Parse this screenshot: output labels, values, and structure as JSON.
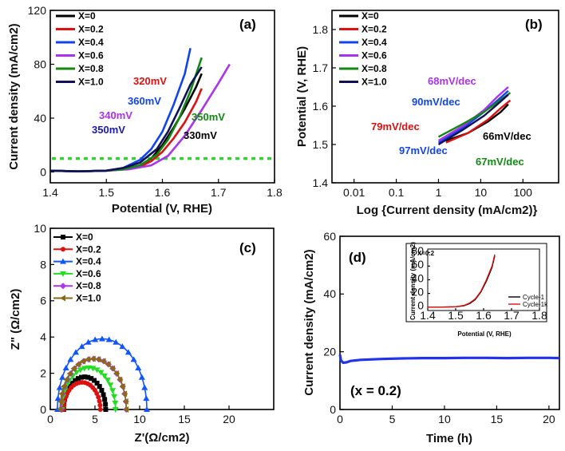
{
  "chart_data": [
    {
      "panel": "(a)",
      "type": "line",
      "xlabel": "Potential (V, RHE)",
      "ylabel": "Current density (mA/cm2)",
      "xlim": [
        1.4,
        1.8
      ],
      "ylim": [
        -8,
        120
      ],
      "xticks": [
        1.4,
        1.5,
        1.6,
        1.7,
        1.8
      ],
      "yticks": [
        0,
        40,
        80,
        120
      ],
      "xtick_labels": [
        "1.4",
        "1.5",
        "1.6",
        "1.7",
        "1.8"
      ],
      "ytick_labels": [
        "0",
        "40",
        "80",
        "120"
      ],
      "reference_line": {
        "y": 10,
        "color": "#22dd22"
      },
      "series": [
        {
          "name": "X=0",
          "color": "#000000",
          "x": [
            1.4,
            1.45,
            1.5,
            1.53,
            1.56,
            1.58,
            1.6,
            1.62,
            1.64,
            1.66,
            1.67
          ],
          "y": [
            1,
            0.5,
            1,
            2,
            5,
            10,
            20,
            33,
            47,
            63,
            73
          ]
        },
        {
          "name": "X=0.2",
          "color": "#dd1111",
          "x": [
            1.4,
            1.45,
            1.5,
            1.53,
            1.56,
            1.58,
            1.6,
            1.62,
            1.64,
            1.66,
            1.67
          ],
          "y": [
            1,
            0.5,
            1,
            2,
            4,
            8,
            15,
            25,
            37,
            52,
            62
          ]
        },
        {
          "name": "X=0.4",
          "color": "#1144ee",
          "x": [
            1.4,
            1.45,
            1.5,
            1.53,
            1.56,
            1.58,
            1.6,
            1.62,
            1.64,
            1.65
          ],
          "y": [
            1,
            0.5,
            1,
            3,
            9,
            17,
            30,
            50,
            73,
            92
          ]
        },
        {
          "name": "X=0.6",
          "color": "#aa33ee",
          "x": [
            1.4,
            1.45,
            1.5,
            1.54,
            1.58,
            1.61,
            1.64,
            1.67,
            1.7,
            1.72
          ],
          "y": [
            1,
            0.5,
            1,
            2,
            5,
            12,
            27,
            46,
            66,
            80
          ]
        },
        {
          "name": "X=0.8",
          "color": "#118811",
          "x": [
            1.4,
            1.45,
            1.5,
            1.53,
            1.56,
            1.59,
            1.61,
            1.63,
            1.65,
            1.67
          ],
          "y": [
            1,
            0.5,
            1,
            2,
            5,
            13,
            24,
            40,
            60,
            85
          ]
        },
        {
          "name": "X=1.0",
          "color": "#111155",
          "x": [
            1.4,
            1.45,
            1.5,
            1.53,
            1.56,
            1.59,
            1.61,
            1.63,
            1.65,
            1.67
          ],
          "y": [
            1,
            0.5,
            1,
            3,
            7,
            17,
            30,
            47,
            65,
            78
          ]
        }
      ],
      "annotations": [
        {
          "text": "320mV",
          "color": "#dd1111"
        },
        {
          "text": "360mV",
          "color": "#1144ee"
        },
        {
          "text": "340mV",
          "color": "#aa33ee"
        },
        {
          "text": "350mV",
          "color": "#118811"
        },
        {
          "text": "350mV",
          "color": "#1a1aaa"
        },
        {
          "text": "330mV",
          "color": "#000000"
        }
      ]
    },
    {
      "panel": "(b)",
      "type": "line",
      "xlabel": "Log {Current density (mA/cm2)}",
      "ylabel": "Potential (V, RHE)",
      "xscale": "log",
      "xlim": [
        0.003,
        700
      ],
      "ylim": [
        1.4,
        1.85
      ],
      "xticks": [
        0.01,
        0.1,
        1,
        10,
        100
      ],
      "yticks": [
        1.4,
        1.5,
        1.6,
        1.7,
        1.8
      ],
      "xtick_labels": [
        "0.01",
        "0.1",
        "1",
        "10",
        "100"
      ],
      "ytick_labels": [
        "1.4",
        "1.5",
        "1.6",
        "1.7",
        "1.8"
      ],
      "series": [
        {
          "name": "X=0",
          "color": "#000000",
          "x": [
            1.5,
            5,
            15,
            30,
            45
          ],
          "y": [
            1.51,
            1.53,
            1.56,
            1.585,
            1.605
          ]
        },
        {
          "name": "X=0.2",
          "color": "#dd1111",
          "x": [
            1.5,
            5,
            15,
            30,
            50
          ],
          "y": [
            1.505,
            1.53,
            1.565,
            1.595,
            1.615
          ]
        },
        {
          "name": "X=0.4",
          "color": "#1144ee",
          "x": [
            1,
            4,
            12,
            25,
            45
          ],
          "y": [
            1.505,
            1.545,
            1.585,
            1.615,
            1.64
          ]
        },
        {
          "name": "X=0.6",
          "color": "#aa33ee",
          "x": [
            1,
            4,
            12,
            25,
            45
          ],
          "y": [
            1.51,
            1.55,
            1.59,
            1.625,
            1.65
          ]
        },
        {
          "name": "X=0.8",
          "color": "#118811",
          "x": [
            1,
            4,
            12,
            25,
            50
          ],
          "y": [
            1.52,
            1.555,
            1.585,
            1.61,
            1.635
          ]
        },
        {
          "name": "X=1.0",
          "color": "#111155",
          "x": [
            1,
            4,
            12,
            25,
            45
          ],
          "y": [
            1.5,
            1.54,
            1.575,
            1.605,
            1.63
          ]
        }
      ],
      "annotations": [
        {
          "text": "68mV/dec",
          "color": "#aa33ee"
        },
        {
          "text": "90mV/dec",
          "color": "#1144ee"
        },
        {
          "text": "79mV/dec",
          "color": "#dd1111"
        },
        {
          "text": "66mV/dec",
          "color": "#000000"
        },
        {
          "text": "97mV/dec",
          "color": "#1144ee"
        },
        {
          "text": "67mV/dec",
          "color": "#118811"
        }
      ]
    },
    {
      "panel": "(c)",
      "type": "scatter",
      "xlabel": "Z'(Ω/cm2)",
      "ylabel": "Z\" (Ω/cm2)",
      "xlim": [
        0,
        25
      ],
      "ylim": [
        0,
        10
      ],
      "xticks": [
        0,
        5,
        10,
        15,
        20
      ],
      "yticks": [
        0,
        2,
        4,
        6,
        8,
        10
      ],
      "xtick_labels": [
        "0",
        "5",
        "10",
        "15",
        "20"
      ],
      "ytick_labels": [
        "0",
        "2",
        "4",
        "6",
        "8",
        "10"
      ],
      "series": [
        {
          "name": "X=0",
          "color": "#000000",
          "marker": "square",
          "x_start": 1.5,
          "x_end": 6.2,
          "peak": 1.8
        },
        {
          "name": "X=0.2",
          "color": "#dd1111",
          "marker": "circle",
          "x_start": 1.5,
          "x_end": 5.6,
          "peak": 1.5
        },
        {
          "name": "X=0.4",
          "color": "#1155ff",
          "marker": "triangle-up",
          "x_start": 0.8,
          "x_end": 10.8,
          "peak": 3.9
        },
        {
          "name": "X=0.6",
          "color": "#22dd22",
          "marker": "triangle-down",
          "x_start": 1.3,
          "x_end": 7.3,
          "peak": 2.3
        },
        {
          "name": "X=0.8",
          "color": "#aa33ee",
          "marker": "diamond",
          "x_start": 1.2,
          "x_end": 8.5,
          "peak": 2.8
        },
        {
          "name": "X=1.0",
          "color": "#8b6a14",
          "marker": "triangle-left",
          "x_start": 1.1,
          "x_end": 8.5,
          "peak": 2.8
        }
      ]
    },
    {
      "panel": "(d)",
      "type": "line",
      "xlabel": "Time (h)",
      "ylabel": "Current density (mA/cm2)",
      "xlim": [
        0,
        21
      ],
      "ylim": [
        0,
        60
      ],
      "xticks": [
        0,
        5,
        10,
        15,
        20
      ],
      "yticks": [
        0,
        20,
        40,
        60
      ],
      "xtick_labels": [
        "0",
        "5",
        "10",
        "15",
        "20"
      ],
      "ytick_labels": [
        "0",
        "20",
        "40",
        "60"
      ],
      "annotation": "(x = 0.2)",
      "series": [
        {
          "name": "x = 0.2",
          "color": "#2233ee",
          "x": [
            0,
            0.1,
            0.3,
            0.6,
            1,
            2,
            4,
            6,
            8,
            10,
            12,
            14,
            16,
            18,
            20,
            21
          ],
          "y": [
            19,
            17,
            16.2,
            16.3,
            16.8,
            17.2,
            17.5,
            17.7,
            17.8,
            17.8,
            17.9,
            17.9,
            17.8,
            17.9,
            17.9,
            17.8
          ]
        }
      ],
      "inset": {
        "label": "X=0.2",
        "xlabel": "Potential (V, RHE)",
        "ylabel": "Current density (mA/cm2)",
        "xlim": [
          1.4,
          1.8
        ],
        "ylim": [
          -5,
          85
        ],
        "xticks": [
          1.4,
          1.5,
          1.6,
          1.7,
          1.8
        ],
        "yticks": [
          0,
          20,
          40,
          60,
          80
        ],
        "xtick_labels": [
          "1.4",
          "1.5",
          "1.6",
          "1.7",
          "1.8"
        ],
        "ytick_labels": [
          "0",
          "20",
          "40",
          "60",
          "80"
        ],
        "series": [
          {
            "name": "Cycle-1",
            "color": "#000000",
            "x": [
              1.4,
              1.45,
              1.5,
              1.53,
              1.55,
              1.57,
              1.59,
              1.61,
              1.63,
              1.64
            ],
            "y": [
              0,
              0,
              0.5,
              2,
              5,
              11,
              22,
              38,
              58,
              75
            ]
          },
          {
            "name": "Cycle-1k",
            "color": "#dd1111",
            "x": [
              1.4,
              1.45,
              1.5,
              1.53,
              1.55,
              1.57,
              1.59,
              1.61,
              1.63,
              1.64
            ],
            "y": [
              0,
              0,
              0.5,
              2.5,
              6,
              12,
              23,
              40,
              60,
              77
            ]
          }
        ]
      }
    }
  ]
}
